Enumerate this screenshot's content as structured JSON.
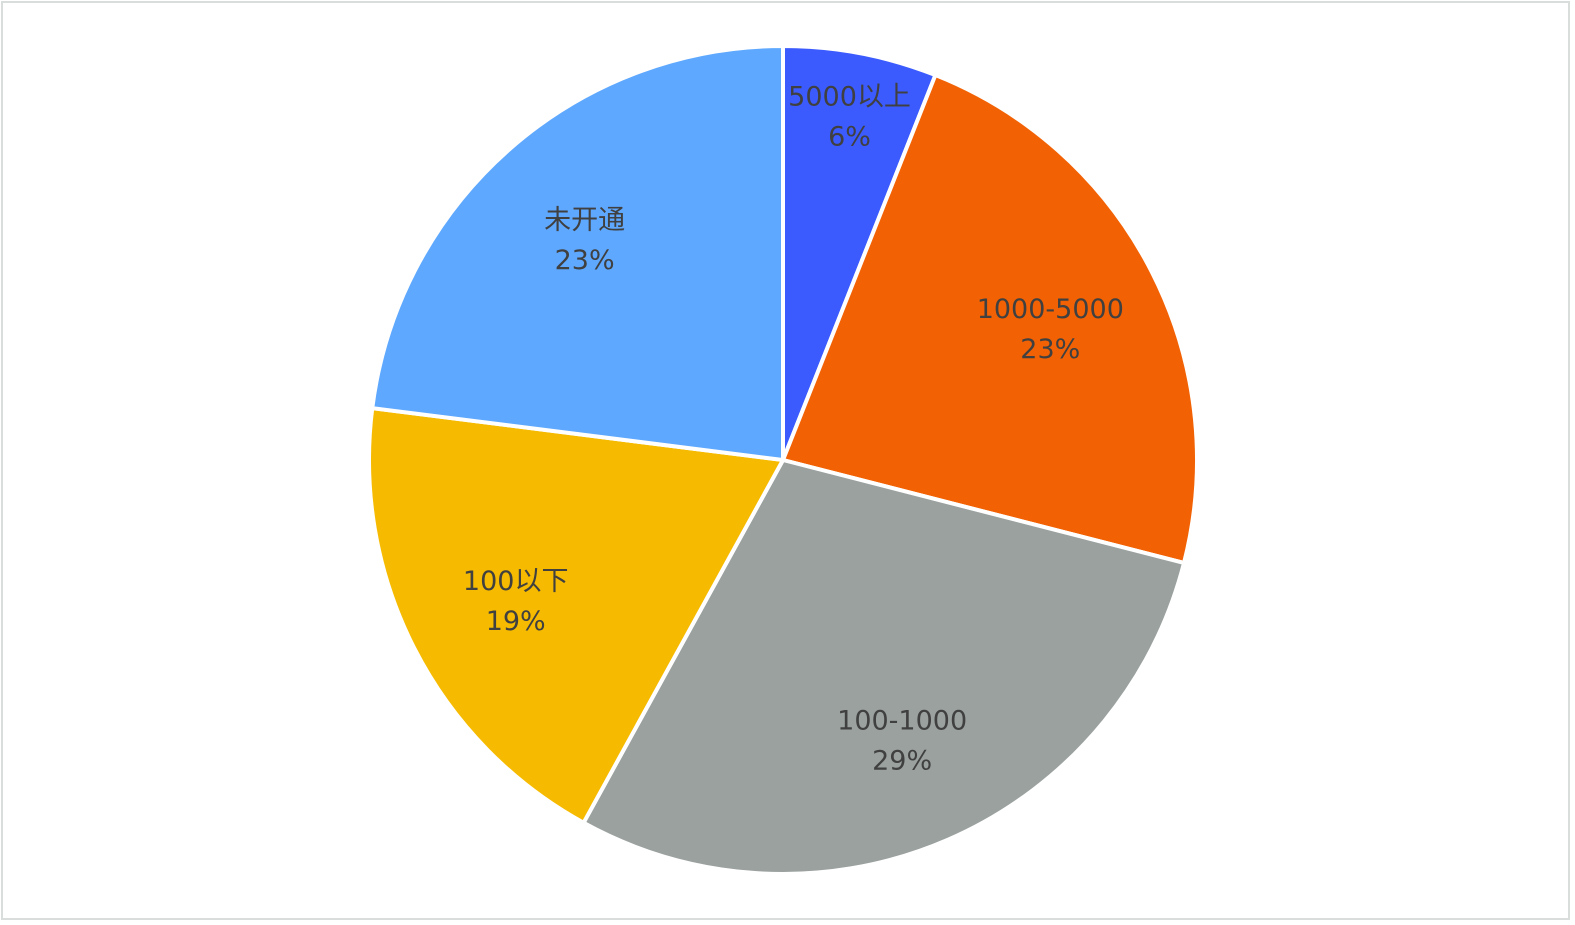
{
  "chart_data": {
    "type": "pie",
    "title": "",
    "slices": [
      {
        "label": "5000以上",
        "value": 6,
        "value_label": "6%",
        "color": "#3b5bff"
      },
      {
        "label": "1000-5000",
        "value": 23,
        "value_label": "23%",
        "color": "#f26205"
      },
      {
        "label": "100-1000",
        "value": 29,
        "value_label": "29%",
        "color": "#9aa19f"
      },
      {
        "label": "100以下",
        "value": 19,
        "value_label": "19%",
        "color": "#f6bb00"
      },
      {
        "label": "未开通",
        "value": 23,
        "value_label": "23%",
        "color": "#5ea8ff"
      }
    ],
    "start": "12 o'clock",
    "direction": "clockwise",
    "legend": "none",
    "data_labels": "category and percent inside slices"
  }
}
